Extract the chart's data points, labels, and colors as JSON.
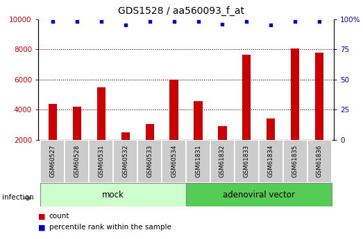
{
  "title": "GDS1528 / aa560093_f_at",
  "samples": [
    "GSM60527",
    "GSM60528",
    "GSM60531",
    "GSM60532",
    "GSM60533",
    "GSM60534",
    "GSM61831",
    "GSM61832",
    "GSM61833",
    "GSM61834",
    "GSM61835",
    "GSM61836"
  ],
  "counts": [
    4400,
    4200,
    5500,
    2500,
    3050,
    6000,
    4550,
    2900,
    7650,
    3400,
    8050,
    7800
  ],
  "percentile_ranks": [
    98,
    98,
    98,
    95,
    98,
    98,
    98,
    96,
    98,
    95,
    98,
    98
  ],
  "mock_count": 6,
  "adeno_count": 6,
  "ylim_left": [
    2000,
    10000
  ],
  "ylim_right": [
    0,
    100
  ],
  "yticks_left": [
    2000,
    4000,
    6000,
    8000,
    10000
  ],
  "yticks_right": [
    0,
    25,
    50,
    75,
    100
  ],
  "bar_color": "#cc0000",
  "dot_color": "#0000cc",
  "mock_bg": "#ccffcc",
  "adeno_bg": "#55cc55",
  "label_bg": "#cccccc",
  "legend_count_color": "#cc0000",
  "legend_pct_color": "#0000cc",
  "bar_width": 0.35
}
